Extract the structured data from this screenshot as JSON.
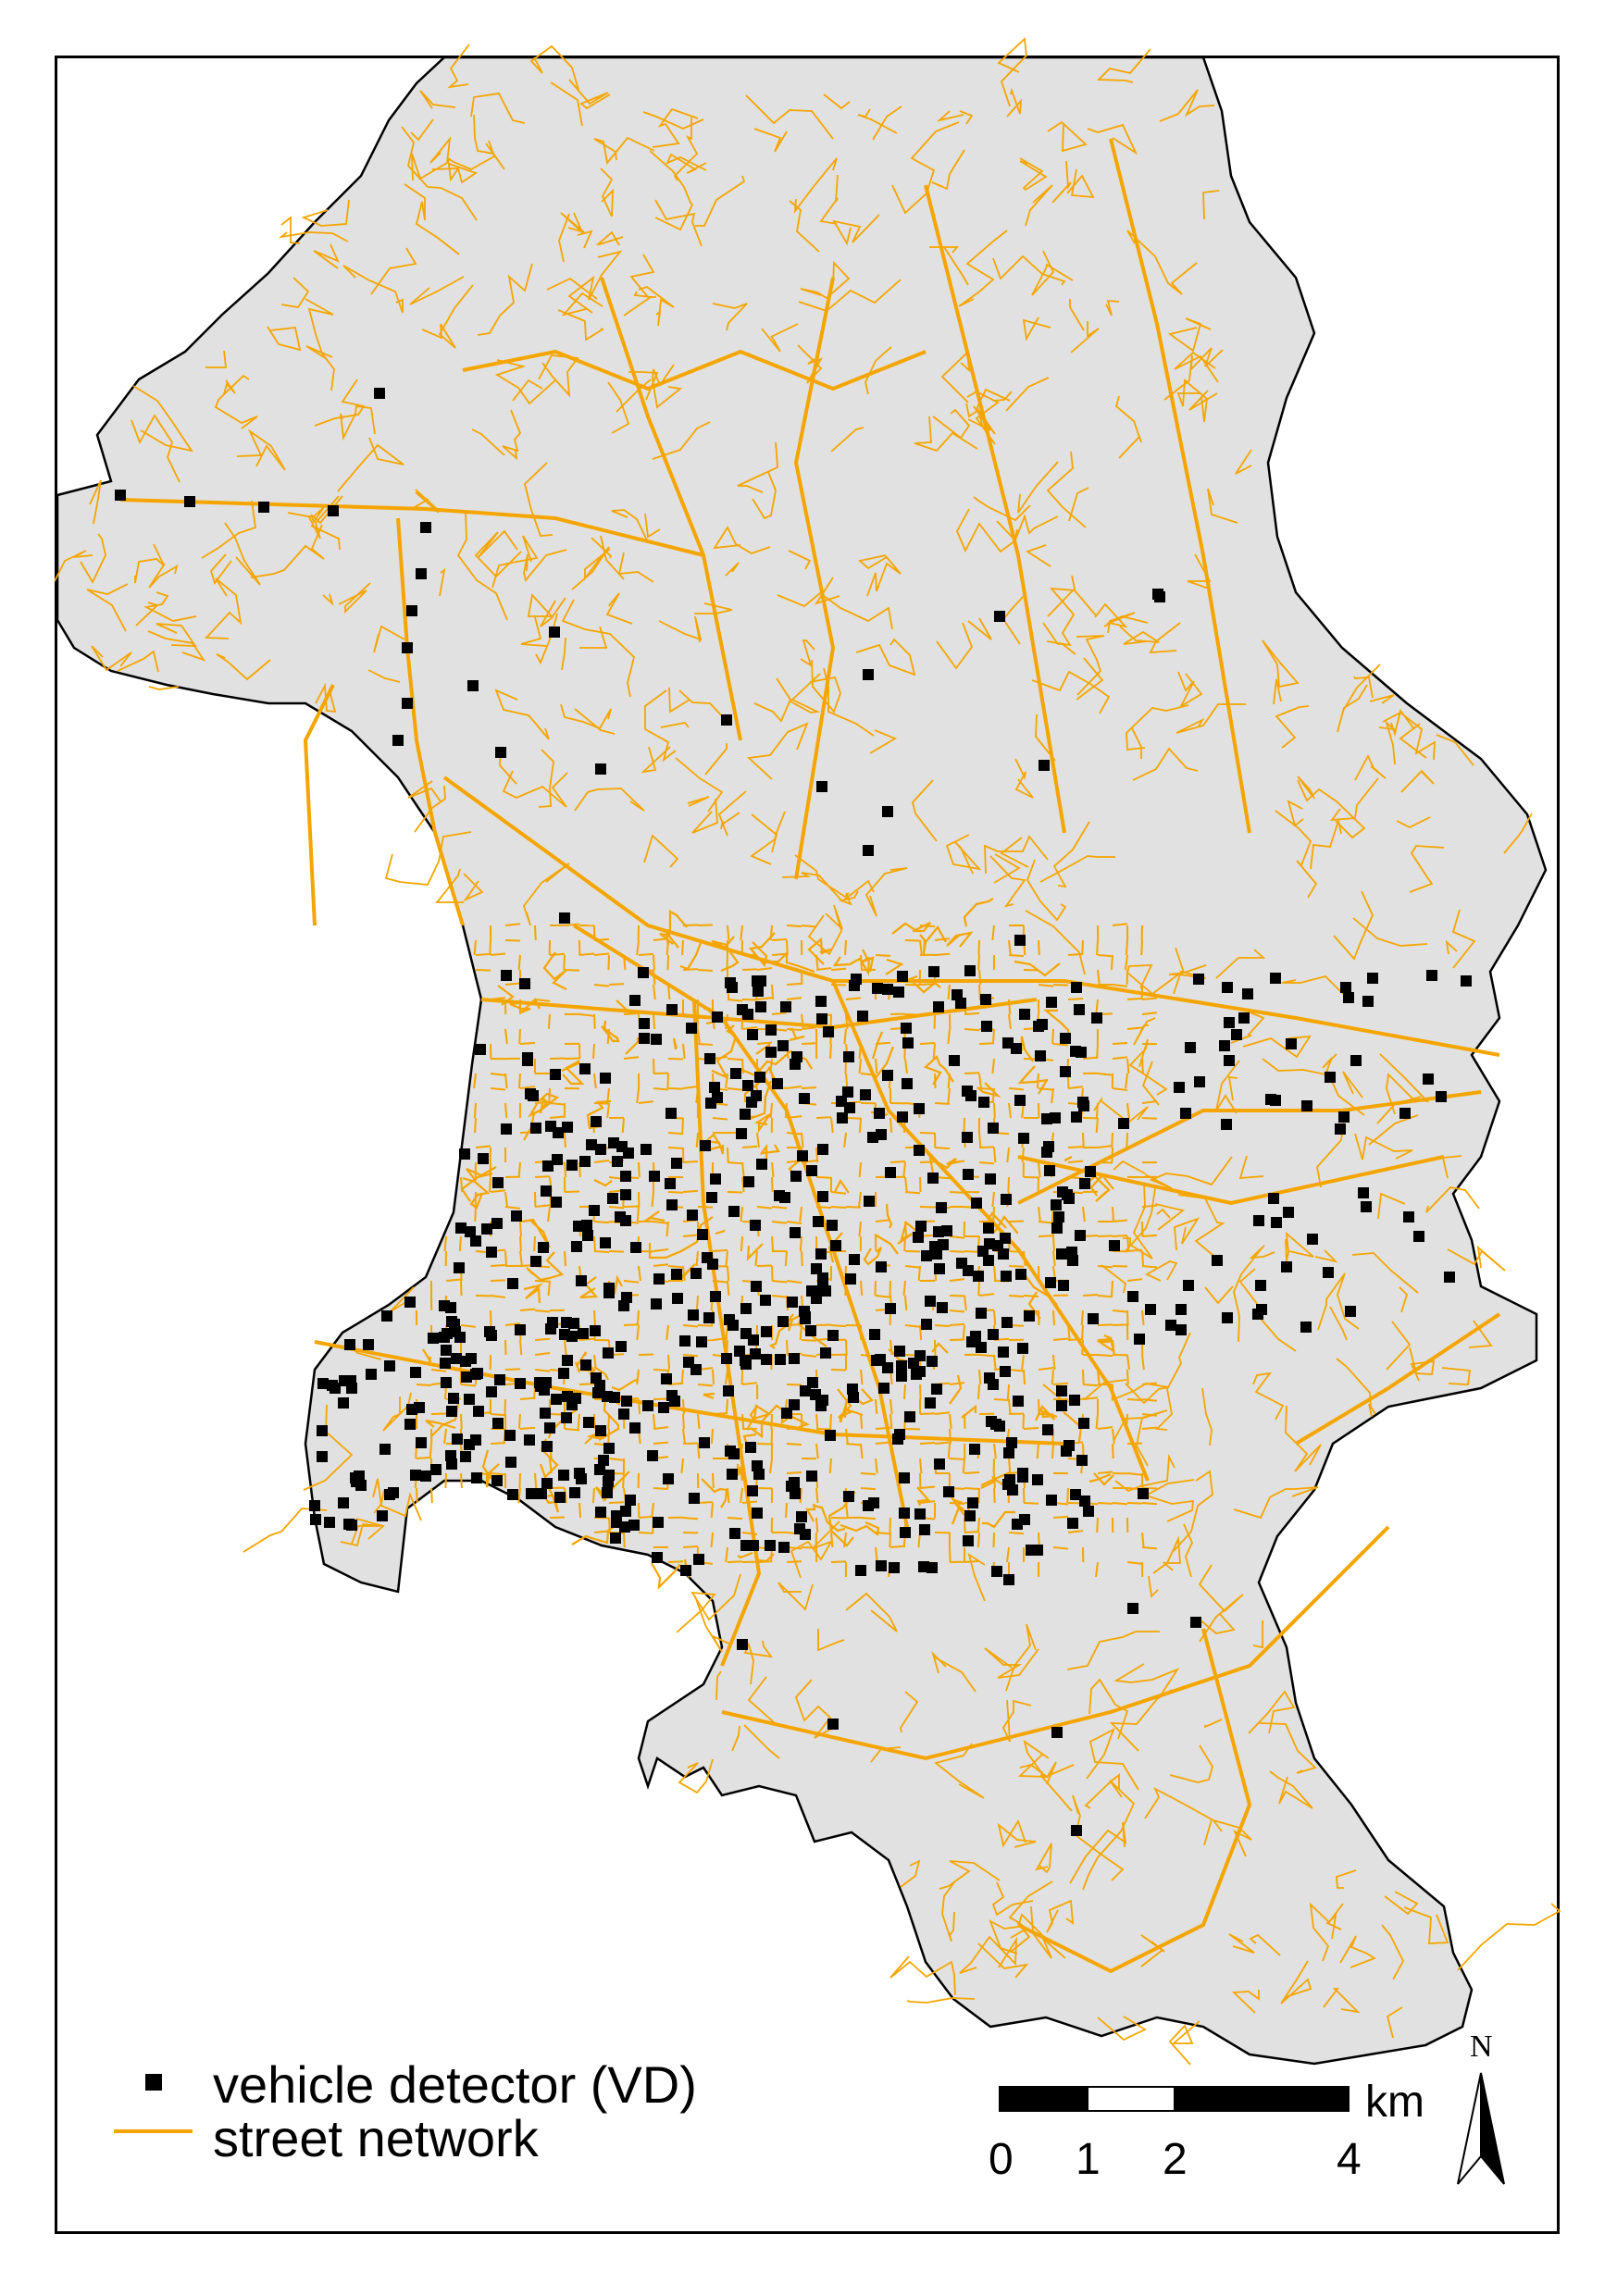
{
  "legend": {
    "detector_label": "vehicle detector (VD)",
    "street_label": "street network"
  },
  "scale_bar": {
    "unit": "km",
    "ticks": [
      "0",
      "1",
      "2",
      "4"
    ]
  },
  "north_arrow": {
    "label": "N",
    "icon": "north-arrow-icon"
  },
  "colors": {
    "land": "#e1e1e1",
    "street": "#f5a500",
    "detector": "#000000",
    "boundary": "#000000"
  }
}
